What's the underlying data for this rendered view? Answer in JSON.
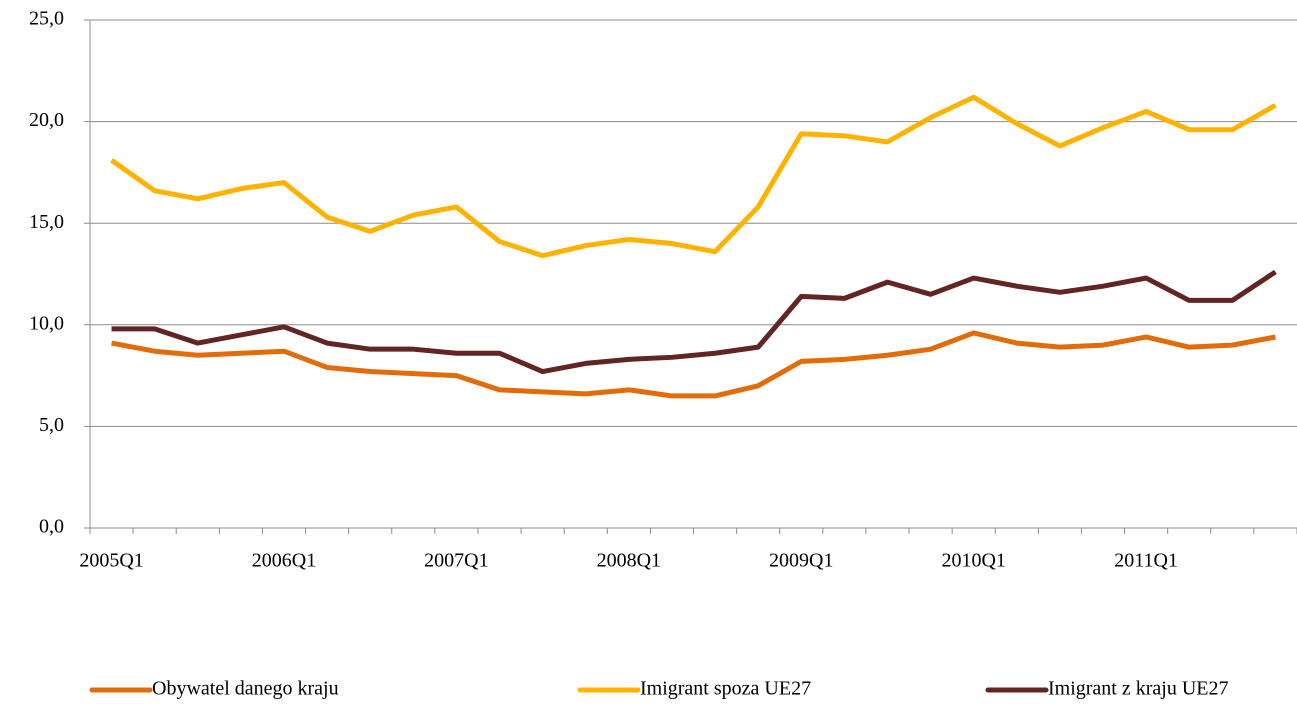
{
  "chart_data": {
    "type": "line",
    "categories": [
      "2005Q1",
      null,
      null,
      null,
      "2006Q1",
      null,
      null,
      null,
      "2007Q1",
      null,
      null,
      null,
      "2008Q1",
      null,
      null,
      null,
      "2009Q1",
      null,
      null,
      null,
      "2010Q1",
      null,
      null,
      null,
      "2011Q1",
      null,
      null,
      null
    ],
    "series": [
      {
        "name": "Obywatel danego kraju",
        "color": "#e36c0a",
        "values": [
          9.1,
          8.7,
          8.5,
          8.6,
          8.7,
          7.9,
          7.7,
          7.6,
          7.5,
          6.8,
          6.7,
          6.6,
          6.8,
          6.5,
          6.5,
          7.0,
          8.2,
          8.3,
          8.5,
          8.8,
          9.6,
          9.1,
          8.9,
          9.0,
          9.4,
          8.9,
          9.0,
          9.4
        ]
      },
      {
        "name": "Imigrant spoza UE27",
        "color": "#ffb300",
        "values": [
          18.1,
          16.6,
          16.2,
          16.7,
          17.0,
          15.3,
          14.6,
          15.4,
          15.8,
          14.1,
          13.4,
          13.9,
          14.2,
          14.0,
          13.6,
          15.8,
          19.4,
          19.3,
          19.0,
          20.2,
          21.2,
          19.9,
          18.8,
          19.7,
          20.5,
          19.6,
          19.6,
          20.8
        ]
      },
      {
        "name": "Imigrant z kraju UE27",
        "color": "#632523",
        "values": [
          9.8,
          9.8,
          9.1,
          9.5,
          9.9,
          9.1,
          8.8,
          8.8,
          8.6,
          8.6,
          7.7,
          8.1,
          8.3,
          8.4,
          8.6,
          8.9,
          11.4,
          11.3,
          12.1,
          11.5,
          12.3,
          11.9,
          11.6,
          11.9,
          12.3,
          11.2,
          11.2,
          12.6
        ]
      }
    ],
    "ylim": [
      0,
      25
    ],
    "yticks": [
      {
        "value": 0,
        "label": "0,0"
      },
      {
        "value": 5,
        "label": "5,0"
      },
      {
        "value": 10,
        "label": "10,0"
      },
      {
        "value": 15,
        "label": "15,0"
      },
      {
        "value": 20,
        "label": "20,0"
      },
      {
        "value": 25,
        "label": "25,0"
      }
    ],
    "grid": true,
    "legend": "bottom"
  }
}
